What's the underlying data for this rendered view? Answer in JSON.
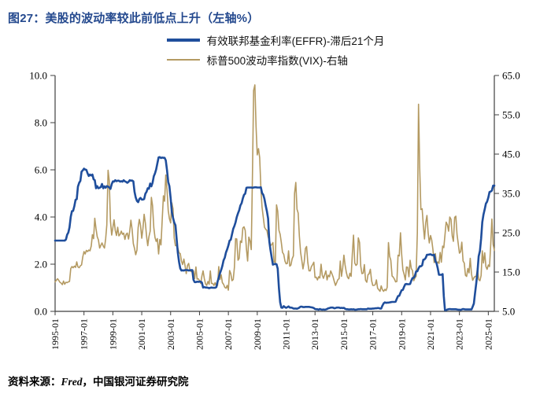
{
  "header": {
    "title": "图27：美股的波动率较此前低点上升（左轴%）"
  },
  "footer": {
    "prefix": "资料来源：",
    "source_name": "Fred",
    "suffix": "，中国银河证券研究院"
  },
  "chart_data": {
    "type": "line",
    "title": "图27：美股的波动率较此前低点上升（左轴%）",
    "x_unit": "month",
    "x_range": [
      "1995-01",
      "2025-06"
    ],
    "x_tick_labels": [
      "1995-01",
      "1997-01",
      "1999-01",
      "2001-01",
      "2003-01",
      "2005-01",
      "2007-01",
      "2009-01",
      "2011-01",
      "2013-01",
      "2015-01",
      "2017-01",
      "2019-01",
      "2021-01",
      "2023-01",
      "2025-01"
    ],
    "left_axis": {
      "min": 0,
      "max": 10,
      "ticks": [
        0,
        2,
        4,
        6,
        8,
        10
      ],
      "tick_labels": [
        "0.0",
        "2.0",
        "4.0",
        "6.0",
        "8.0",
        "10.0"
      ]
    },
    "right_axis": {
      "min": 5,
      "max": 65,
      "ticks": [
        5,
        15,
        25,
        35,
        45,
        55,
        65
      ],
      "tick_labels": [
        "5.0",
        "15.0",
        "25.0",
        "35.0",
        "45.0",
        "55.0",
        "65.0"
      ]
    },
    "legend_position": "top",
    "grid": false,
    "series": [
      {
        "name": "有效联邦基金利率(EFFR)-滞后21个月",
        "axis": "left",
        "color": "#1f4e9c",
        "width": 2.6,
        "values": [
          3.0,
          3.0,
          3.0,
          3.0,
          3.0,
          3.0,
          3.0,
          3.0,
          3.0,
          3.05,
          3.25,
          3.34,
          3.56,
          4.01,
          4.25,
          4.26,
          4.47,
          4.73,
          4.76,
          5.29,
          5.45,
          5.53,
          5.92,
          5.98,
          6.05,
          6.01,
          6.0,
          5.85,
          5.74,
          5.8,
          5.76,
          5.8,
          5.6,
          5.56,
          5.22,
          5.31,
          5.22,
          5.24,
          5.27,
          5.4,
          5.22,
          5.3,
          5.24,
          5.31,
          5.29,
          5.25,
          5.19,
          5.39,
          5.51,
          5.5,
          5.56,
          5.52,
          5.54,
          5.54,
          5.5,
          5.52,
          5.5,
          5.56,
          5.51,
          5.49,
          5.45,
          5.49,
          5.56,
          5.54,
          5.55,
          5.51,
          5.07,
          4.83,
          4.68,
          4.63,
          4.76,
          4.81,
          4.74,
          4.74,
          4.76,
          4.99,
          5.07,
          5.22,
          5.2,
          5.42,
          5.3,
          5.45,
          5.73,
          5.85,
          6.02,
          6.27,
          6.53,
          6.54,
          6.5,
          6.52,
          6.51,
          6.51,
          6.4,
          5.98,
          5.49,
          5.31,
          4.8,
          4.21,
          3.97,
          3.77,
          3.65,
          3.07,
          2.49,
          2.09,
          1.82,
          1.73,
          1.74,
          1.73,
          1.75,
          1.75,
          1.75,
          1.73,
          1.74,
          1.75,
          1.75,
          1.34,
          1.24,
          1.24,
          1.26,
          1.25,
          1.26,
          1.26,
          1.22,
          1.01,
          1.03,
          1.01,
          1.01,
          1.0,
          0.98,
          1.0,
          1.01,
          1.0,
          1.0,
          1.0,
          1.03,
          1.26,
          1.43,
          1.61,
          1.76,
          1.93,
          2.16,
          2.28,
          2.5,
          2.63,
          2.79,
          3.0,
          3.04,
          3.26,
          3.5,
          3.62,
          3.78,
          4.0,
          4.16,
          4.29,
          4.49,
          4.59,
          4.79,
          4.94,
          4.99,
          5.24,
          5.25,
          5.25,
          5.25,
          5.25,
          5.24,
          5.25,
          5.26,
          5.26,
          5.25,
          5.25,
          5.25,
          5.26,
          5.02,
          4.94,
          4.76,
          4.49,
          4.24,
          3.94,
          2.98,
          2.61,
          2.28,
          1.98,
          2.0,
          2.01,
          2.0,
          1.81,
          0.97,
          0.39,
          0.16,
          0.15,
          0.22,
          0.18,
          0.15,
          0.18,
          0.21,
          0.16,
          0.16,
          0.15,
          0.12,
          0.12,
          0.12,
          0.11,
          0.13,
          0.16,
          0.2,
          0.2,
          0.18,
          0.18,
          0.19,
          0.19,
          0.19,
          0.19,
          0.18,
          0.17,
          0.16,
          0.14,
          0.1,
          0.09,
          0.09,
          0.07,
          0.1,
          0.08,
          0.07,
          0.08,
          0.07,
          0.08,
          0.1,
          0.13,
          0.14,
          0.16,
          0.16,
          0.16,
          0.13,
          0.14,
          0.16,
          0.16,
          0.16,
          0.14,
          0.15,
          0.14,
          0.15,
          0.11,
          0.09,
          0.09,
          0.08,
          0.08,
          0.09,
          0.08,
          0.09,
          0.07,
          0.07,
          0.08,
          0.09,
          0.09,
          0.1,
          0.09,
          0.09,
          0.09,
          0.09,
          0.09,
          0.12,
          0.11,
          0.11,
          0.11,
          0.12,
          0.12,
          0.13,
          0.13,
          0.14,
          0.14,
          0.12,
          0.12,
          0.24,
          0.34,
          0.38,
          0.36,
          0.37,
          0.37,
          0.38,
          0.39,
          0.4,
          0.4,
          0.4,
          0.41,
          0.54,
          0.65,
          0.66,
          0.79,
          0.9,
          0.91,
          1.04,
          1.15,
          1.16,
          1.15,
          1.15,
          1.16,
          1.3,
          1.41,
          1.42,
          1.51,
          1.69,
          1.7,
          1.82,
          1.91,
          1.91,
          1.95,
          2.19,
          2.2,
          2.27,
          2.4,
          2.4,
          2.41,
          2.42,
          2.39,
          2.38,
          2.4,
          2.13,
          2.04,
          1.83,
          1.55,
          1.55,
          1.55,
          1.58,
          0.65,
          0.05,
          0.05,
          0.08,
          0.09,
          0.1,
          0.09,
          0.09,
          0.09,
          0.09,
          0.09,
          0.08,
          0.07,
          0.07,
          0.06,
          0.08,
          0.1,
          0.09,
          0.08,
          0.08,
          0.08,
          0.08,
          0.08,
          0.08,
          0.2,
          0.33,
          0.77,
          1.21,
          1.68,
          2.33,
          2.56,
          3.08,
          3.78,
          4.1,
          4.33,
          4.57,
          4.65,
          4.83,
          5.06,
          5.08,
          5.12,
          5.33,
          5.33
        ]
      },
      {
        "name": "标普500波动率指数(VIX)-右轴",
        "axis": "right",
        "color": "#b49a62",
        "width": 1.6,
        "values": [
          12.5,
          12.9,
          13.3,
          12.9,
          12.4,
          12.2,
          11.8,
          12.7,
          11.9,
          12.4,
          12.3,
          12.5,
          12.6,
          15.9,
          16.4,
          16.1,
          16.5,
          16.2,
          17.6,
          16.3,
          16.1,
          16.6,
          16.8,
          18.9,
          20.2,
          19.6,
          20.5,
          20.2,
          20.6,
          20.4,
          21.6,
          24.5,
          23.5,
          28.7,
          26.0,
          24.0,
          23.2,
          21.1,
          21.8,
          22.4,
          21.6,
          21.1,
          23.4,
          27.0,
          40.9,
          38.2,
          28.0,
          24.4,
          26.3,
          28.3,
          25.6,
          24.3,
          26.4,
          24.2,
          24.6,
          25.4,
          24.6,
          24.9,
          23.3,
          24.6,
          24.9,
          23.4,
          25.4,
          28.2,
          25.9,
          22.2,
          21.0,
          19.4,
          20.6,
          26.3,
          28.4,
          26.9,
          23.6,
          26.1,
          29.7,
          27.4,
          24.1,
          21.7,
          24.0,
          25.4,
          34.0,
          31.9,
          26.3,
          23.8,
          22.8,
          23.5,
          19.6,
          23.3,
          21.9,
          28.4,
          34.4,
          33.0,
          39.7,
          36.0,
          30.7,
          28.6,
          27.5,
          32.6,
          31.1,
          23.7,
          21.7,
          21.7,
          21.1,
          19.9,
          19.7,
          17.8,
          16.9,
          18.3,
          16.6,
          14.6,
          16.7,
          17.2,
          15.5,
          15.1,
          15.3,
          15.3,
          13.3,
          16.3,
          13.2,
          13.3,
          12.8,
          12.1,
          14.0,
          15.3,
          13.3,
          12.0,
          11.6,
          12.6,
          11.9,
          15.3,
          12.1,
          12.1,
          11.6,
          12.3,
          11.4,
          11.6,
          16.4,
          13.1,
          14.3,
          12.3,
          11.9,
          11.1,
          10.9,
          11.6,
          10.4,
          15.4,
          14.6,
          12.8,
          13.1,
          16.2,
          23.5,
          23.4,
          18.0,
          18.5,
          22.9,
          22.5,
          26.2,
          26.5,
          25.6,
          20.8,
          17.8,
          23.9,
          22.9,
          20.7,
          39.4,
          61.2,
          62.6,
          52.0,
          44.8,
          46.4,
          44.1,
          36.5,
          31.5,
          28.9,
          26.4,
          25.9,
          25.6,
          24.0,
          23.0,
          21.7,
          22.0,
          22.5,
          17.6,
          17.4,
          32.1,
          30.5,
          25.6,
          24.6,
          22.5,
          20.0,
          19.5,
          17.8,
          17.1,
          17.2,
          20.4,
          16.5,
          16.8,
          18.4,
          19.1,
          35.0,
          37.8,
          31.0,
          30.0,
          24.2,
          20.0,
          18.0,
          15.8,
          17.6,
          21.0,
          21.5,
          17.5,
          15.3,
          15.3,
          16.4,
          16.9,
          17.5,
          13.6,
          13.7,
          13.0,
          13.8,
          13.5,
          17.0,
          14.2,
          13.4,
          14.3,
          15.3,
          13.0,
          14.2,
          13.8,
          15.3,
          14.6,
          13.8,
          12.6,
          11.6,
          12.3,
          13.1,
          13.3,
          17.8,
          13.9,
          16.1,
          19.3,
          16.8,
          14.9,
          13.7,
          13.3,
          14.7,
          13.9,
          19.6,
          24.4,
          17.3,
          16.7,
          17.0,
          23.7,
          22.5,
          16.5,
          14.6,
          14.7,
          16.9,
          12.9,
          12.4,
          14.3,
          14.6,
          15.7,
          12.8,
          11.6,
          11.6,
          11.8,
          13.0,
          10.9,
          10.5,
          10.1,
          11.5,
          10.5,
          10.1,
          10.6,
          10.3,
          11.1,
          22.5,
          19.0,
          18.0,
          14.0,
          13.7,
          13.2,
          12.5,
          12.6,
          19.3,
          19.1,
          25.0,
          19.5,
          15.6,
          14.5,
          13.0,
          16.3,
          16.2,
          13.8,
          18.0,
          15.9,
          15.4,
          12.8,
          13.5,
          13.9,
          25.0,
          57.7,
          41.5,
          30.9,
          31.1,
          26.8,
          23.4,
          27.6,
          29.4,
          25.0,
          22.4,
          24.3,
          23.1,
          20.7,
          17.4,
          19.7,
          17.0,
          17.6,
          17.2,
          20.0,
          17.5,
          21.6,
          21.2,
          24.4,
          27.7,
          27.0,
          25.4,
          29.0,
          28.4,
          24.2,
          22.8,
          28.9,
          29.2,
          24.6,
          22.3,
          19.8,
          20.2,
          22.6,
          17.8,
          17.3,
          14.2,
          13.9,
          15.9,
          14.8,
          18.5,
          14.5,
          12.9,
          13.5,
          13.9,
          13.9,
          16.0,
          13.1,
          12.8,
          14.1,
          20.4,
          17.3,
          19.9,
          16.4,
          15.7,
          16.8,
          16.4,
          21.9,
          28.5,
          22.0,
          20.5
        ]
      }
    ]
  }
}
